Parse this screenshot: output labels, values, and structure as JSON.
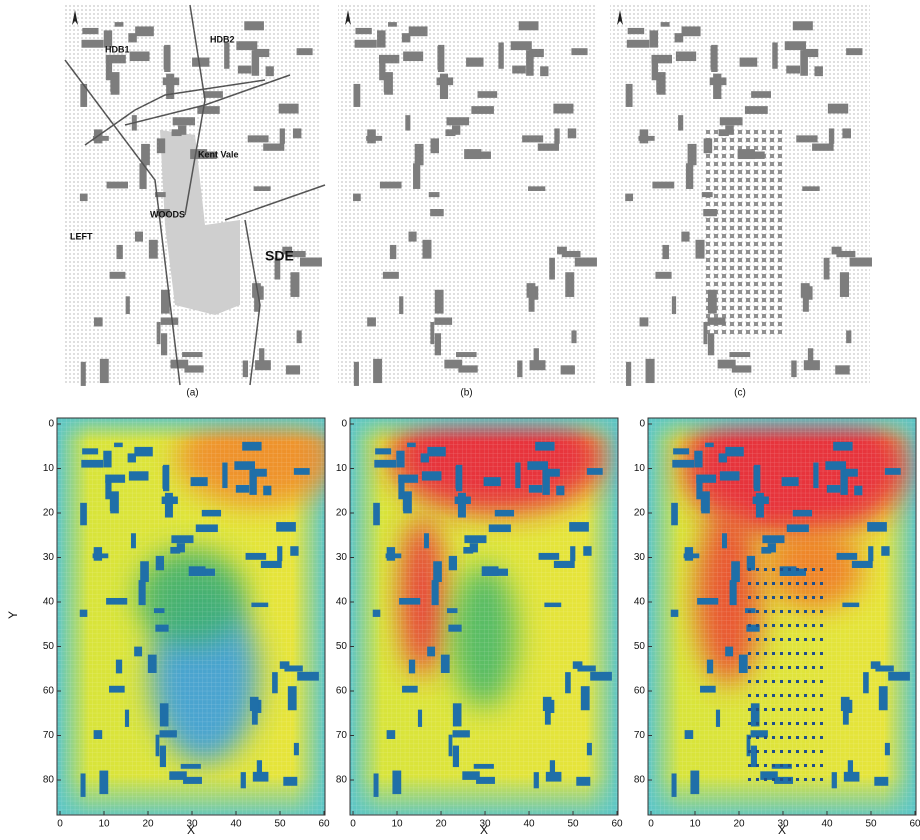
{
  "top_panels": [
    {
      "caption": "(a)",
      "labels": [
        "HDB1",
        "HDB2",
        "Kent Vale",
        "WOODS",
        "LEFT",
        "SDE"
      ]
    },
    {
      "caption": "(b)"
    },
    {
      "caption": "(c)"
    }
  ],
  "bottom_axes": {
    "x_label": "X",
    "y_label": "Y",
    "xticks": [
      0,
      10,
      20,
      30,
      40,
      50,
      60
    ],
    "yticks": [
      0,
      10,
      20,
      30,
      40,
      50,
      60,
      70,
      80
    ]
  }
}
